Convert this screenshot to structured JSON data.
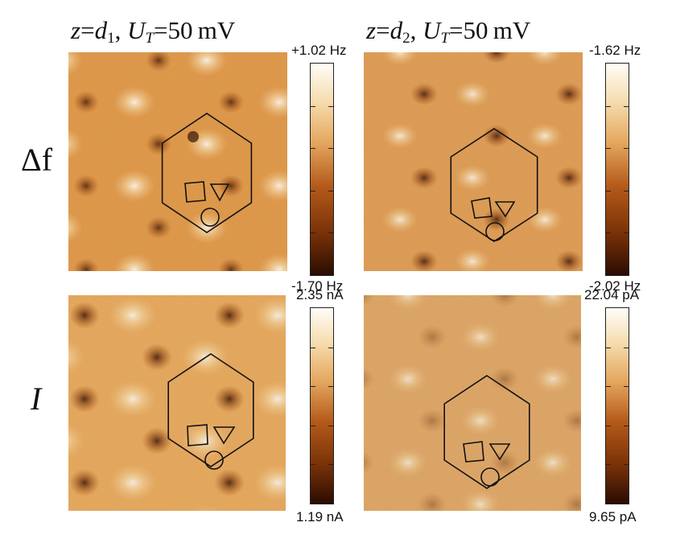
{
  "columns": [
    {
      "z_var": "z",
      "eq1": "=",
      "d_var": "d",
      "d_sub": "1",
      "comma": ",",
      "u_var": "U",
      "u_sub": "T",
      "eq2": "=",
      "value": "50",
      "unit": "mV"
    },
    {
      "z_var": "z",
      "eq1": "=",
      "d_var": "d",
      "d_sub": "2",
      "comma": ",",
      "u_var": "U",
      "u_sub": "T",
      "eq2": "=",
      "value": "50",
      "unit": "mV"
    }
  ],
  "rows": [
    {
      "label": "Δf"
    },
    {
      "label": "I"
    }
  ],
  "colorbars": [
    {
      "max": "+1.02 Hz",
      "min": "-1.70 Hz"
    },
    {
      "max": "-1.62 Hz",
      "min": "-2.02 Hz"
    },
    {
      "max": "2.35 nA",
      "min": "1.19 nA"
    },
    {
      "max": "22.04 pA",
      "min": "9.65 pA"
    }
  ],
  "colors": {
    "low": "#2a0c02",
    "mid": "#b45a1a",
    "high": "#fffdf8",
    "overlay": "#111111"
  }
}
